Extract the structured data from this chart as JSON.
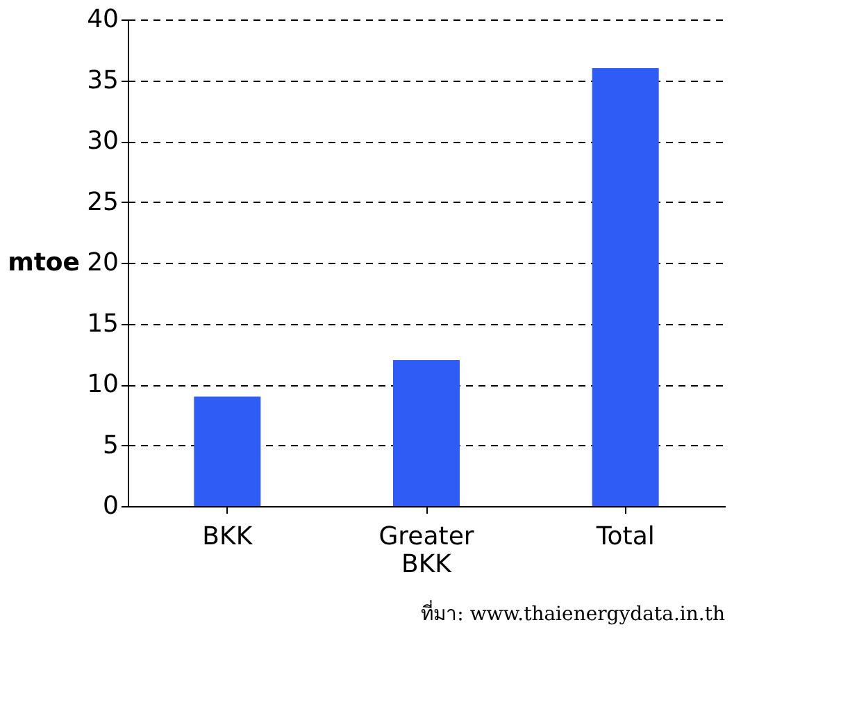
{
  "chart_data": {
    "type": "bar",
    "ylabel": "mtoe",
    "categories": [
      "BKK",
      "Greater BKK",
      "Total"
    ],
    "values": [
      9,
      12,
      36
    ],
    "color": "#2f5cf5",
    "ylim": [
      0,
      40
    ],
    "yticks": [
      0,
      5,
      10,
      15,
      20,
      25,
      30,
      35,
      40
    ],
    "grid": "y",
    "annotations": [
      "ที่มา: www.thaienergydata.in.th"
    ]
  }
}
